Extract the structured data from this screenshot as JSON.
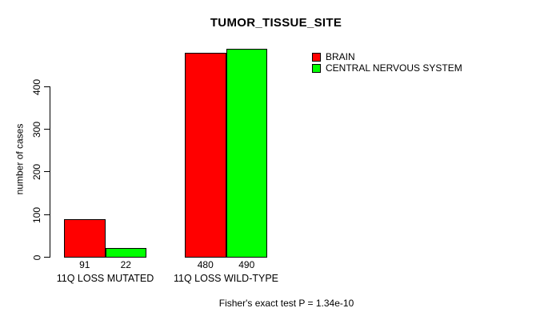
{
  "chart_data": {
    "type": "bar",
    "title": "TUMOR_TISSUE_SITE",
    "ylabel": "number of cases",
    "xlabel": "",
    "ylim": [
      0,
      400
    ],
    "yticks": [
      0,
      100,
      200,
      300,
      400
    ],
    "categories": [
      "11Q LOSS MUTATED",
      "11Q LOSS WILD-TYPE"
    ],
    "series": [
      {
        "name": "BRAIN",
        "color": "#ff0000",
        "values": [
          91,
          480
        ]
      },
      {
        "name": "CENTRAL NERVOUS SYSTEM",
        "color": "#00ff00",
        "values": [
          22,
          490
        ]
      }
    ],
    "value_labels_shown": true,
    "grid": false,
    "legend_position": "top-right",
    "annotation": "Fisher's exact test P = 1.34e-10"
  }
}
